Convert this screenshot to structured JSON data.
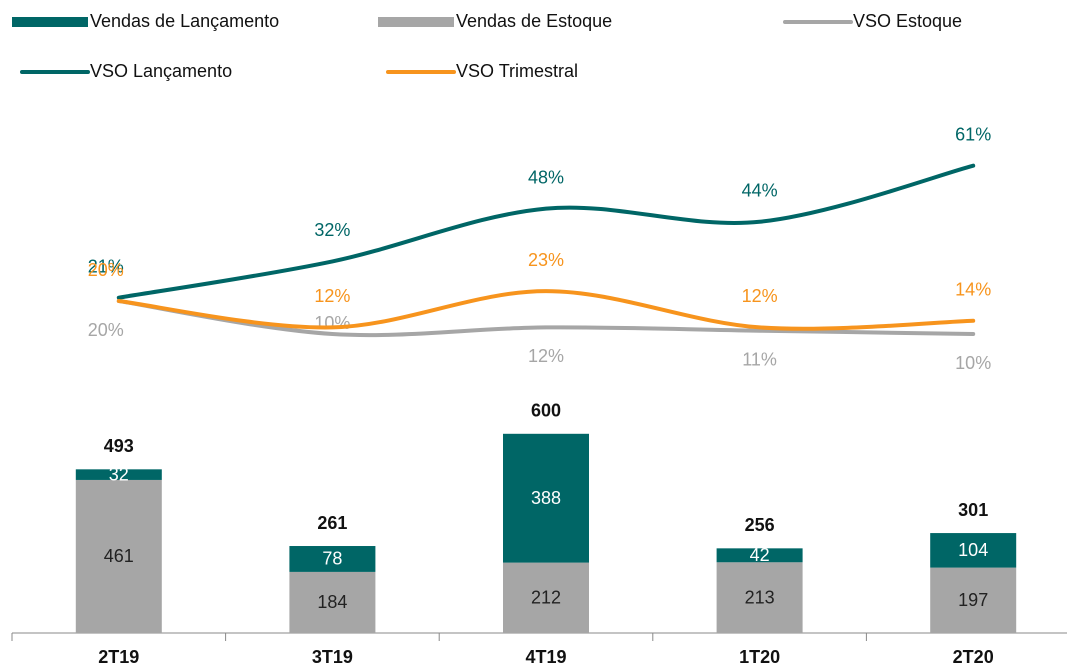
{
  "chart_data": {
    "type": "combo",
    "categories": [
      "2T19",
      "3T19",
      "4T19",
      "1T20",
      "2T20"
    ],
    "series": [
      {
        "name": "Vendas de Lançamento",
        "type": "bar",
        "color": "#006666",
        "label_color": "#ffffff",
        "values": [
          32,
          78,
          388,
          42,
          104
        ]
      },
      {
        "name": "Vendas de Estoque",
        "type": "bar",
        "color": "#a6a6a6",
        "label_color": "#222222",
        "values": [
          461,
          184,
          212,
          213,
          197
        ]
      },
      {
        "name": "VSO Estoque",
        "type": "line",
        "color": "#a6a6a6",
        "values": [
          20,
          10,
          12,
          11,
          10
        ],
        "value_labels": [
          "20%",
          "10%",
          "12%",
          "11%",
          "10%"
        ]
      },
      {
        "name": "VSO Lançamento",
        "type": "line",
        "color": "#006666",
        "values": [
          21,
          32,
          48,
          44,
          61
        ],
        "value_labels": [
          "21%",
          "32%",
          "48%",
          "44%",
          "61%"
        ]
      },
      {
        "name": "VSO Trimestral",
        "type": "line",
        "color": "#f7941d",
        "values": [
          20,
          12,
          23,
          12,
          14
        ],
        "value_labels": [
          "20%",
          "12%",
          "23%",
          "12%",
          "14%"
        ]
      }
    ],
    "totals": [
      493,
      261,
      600,
      256,
      301
    ]
  }
}
